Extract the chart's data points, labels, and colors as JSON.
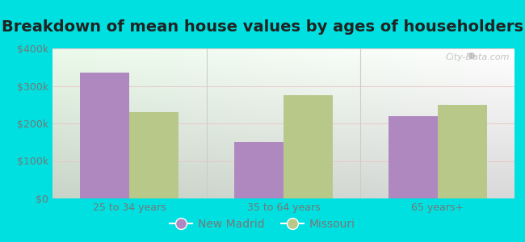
{
  "title": "Breakdown of mean house values by ages of householders",
  "categories": [
    "25 to 34 years",
    "35 to 64 years",
    "65 years+"
  ],
  "new_madrid_values": [
    335000,
    150000,
    220000
  ],
  "missouri_values": [
    230000,
    275000,
    250000
  ],
  "new_madrid_color": "#b088c0",
  "missouri_color": "#b8c888",
  "background_outer": "#00e0e0",
  "background_inner": "#e8f5e8",
  "ylim": [
    0,
    400000
  ],
  "yticks": [
    0,
    100000,
    200000,
    300000,
    400000
  ],
  "ytick_labels": [
    "$0",
    "$100k",
    "$200k",
    "$300k",
    "$400k"
  ],
  "legend_labels": [
    "New Madrid",
    "Missouri"
  ],
  "bar_width": 0.32,
  "title_fontsize": 14,
  "tick_fontsize": 9,
  "legend_fontsize": 10,
  "grid_color": "#e0ece0",
  "watermark_text": "City-Data.com",
  "tick_color": "#777777",
  "title_color": "#222222"
}
